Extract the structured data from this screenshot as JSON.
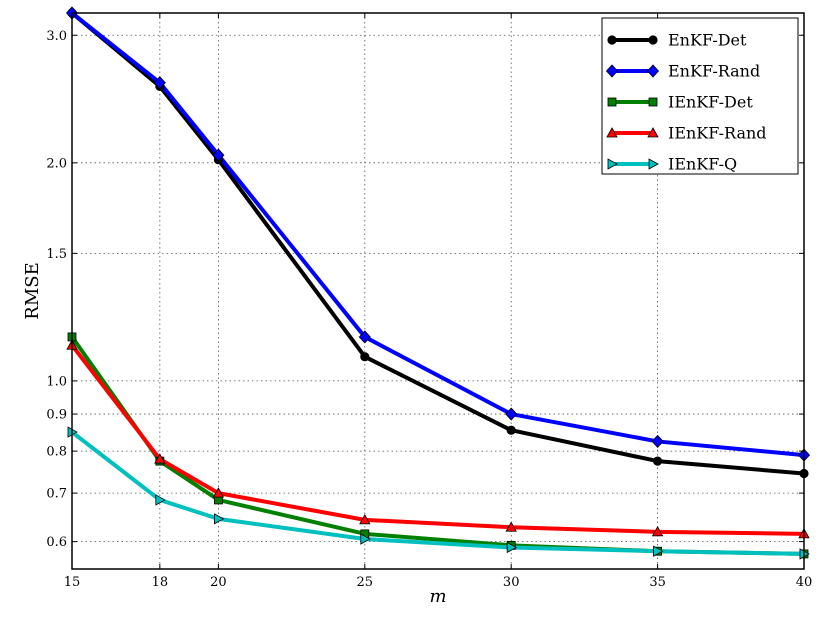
{
  "chart_data": {
    "type": "line",
    "xlabel": "m",
    "ylabel": "RMSE",
    "x_ticks": [
      15,
      18,
      20,
      25,
      30,
      35,
      40
    ],
    "y_ticks": [
      0.6,
      0.7,
      0.8,
      0.9,
      1.0,
      1.5,
      2.0,
      3.0
    ],
    "y_tick_labels": [
      "0.6",
      "0.7",
      "0.8",
      "0.9",
      "1.0",
      "1.5",
      "2.0",
      "3.0"
    ],
    "xlim": [
      15,
      40
    ],
    "ylim": [
      0.55,
      3.22
    ],
    "yscale": "log",
    "grid": true,
    "legend_position": "top-right",
    "x": [
      15,
      18,
      20,
      25,
      30,
      35,
      40
    ],
    "series": [
      {
        "name": "EnKF-Det",
        "color": "#000000",
        "marker": "circle",
        "values": [
          3.22,
          2.55,
          2.02,
          1.08,
          0.855,
          0.775,
          0.745
        ]
      },
      {
        "name": "EnKF-Rand",
        "color": "#0000ff",
        "marker": "diamond",
        "values": [
          3.22,
          2.58,
          2.05,
          1.15,
          0.9,
          0.825,
          0.79
        ]
      },
      {
        "name": "IEnKF-Det",
        "color": "#008000",
        "marker": "square",
        "values": [
          1.15,
          0.775,
          0.685,
          0.615,
          0.593,
          0.582,
          0.577
        ]
      },
      {
        "name": "IEnKF-Rand",
        "color": "#ff0000",
        "marker": "triangle-up",
        "values": [
          1.12,
          0.78,
          0.7,
          0.643,
          0.628,
          0.619,
          0.615
        ]
      },
      {
        "name": "IEnKF-Q",
        "color": "#00bfbf",
        "marker": "triangle-right",
        "values": [
          0.85,
          0.685,
          0.645,
          0.605,
          0.589,
          0.582,
          0.577
        ]
      }
    ]
  }
}
